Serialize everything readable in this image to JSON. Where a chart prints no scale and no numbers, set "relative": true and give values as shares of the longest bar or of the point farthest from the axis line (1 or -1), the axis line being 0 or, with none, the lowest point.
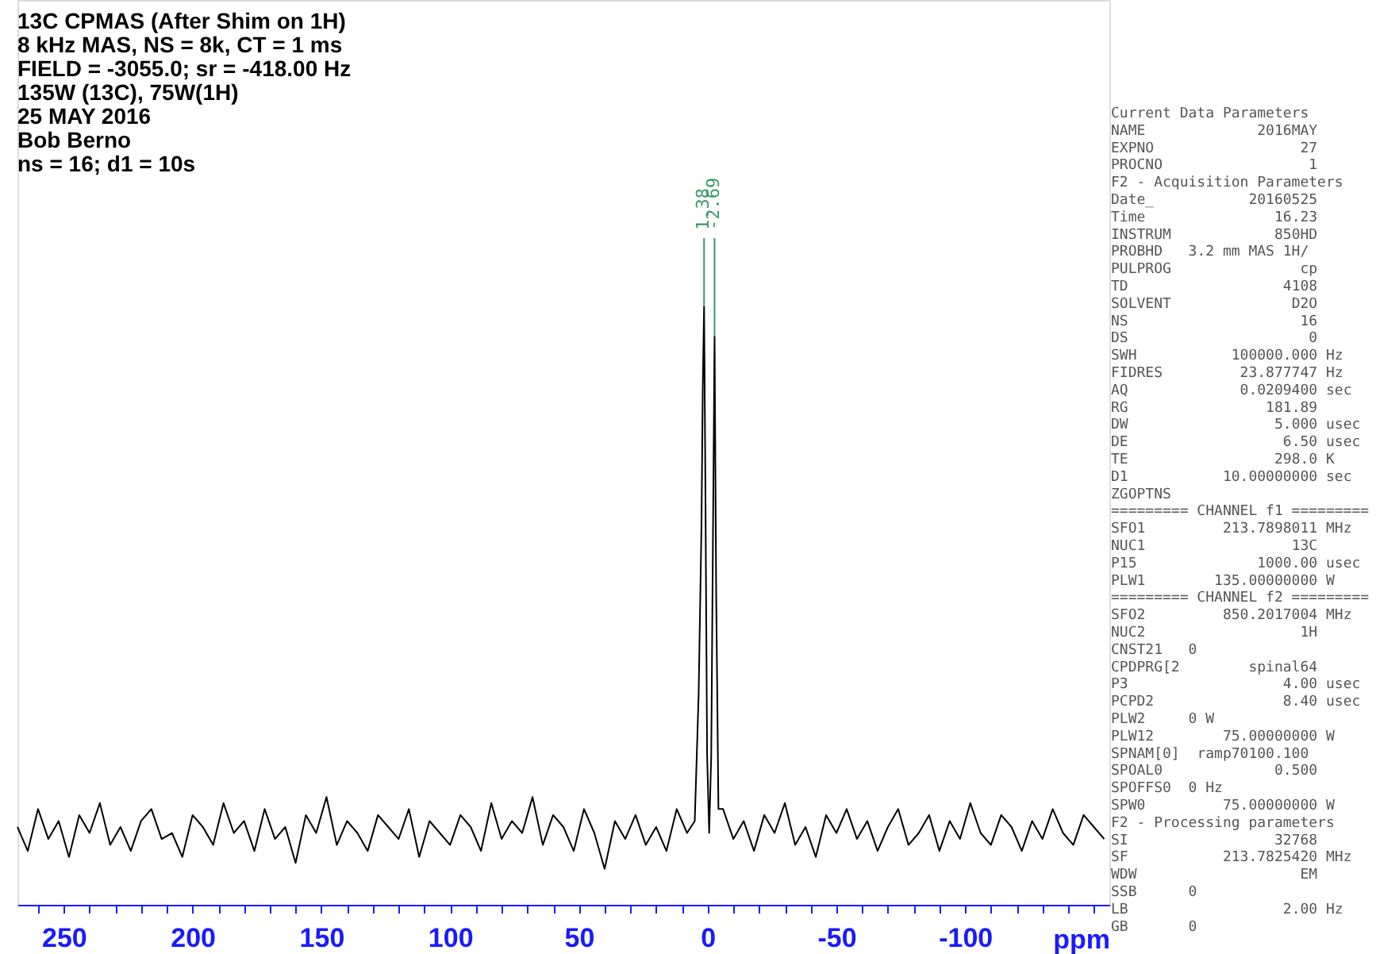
{
  "chart_data": {
    "type": "line",
    "title": "13C CPMAS (After Shim on 1H)",
    "subtitle": "8 kHz MAS, NS  = 8k, CT = 1 ms\nFIELD = -3055.0;  sr = -418.00 Hz\n135W (13C), 75W(1H)\n25 MAY 2016\nBob Berno\nns = 16; d1 = 10s",
    "xlabel": "ppm",
    "relative": true,
    "grid": false,
    "marker": "none",
    "line_style": "solid",
    "xlim": [
      268,
      -156
    ],
    "xticks": [
      {
        "value": 260,
        "label": null
      },
      250,
      {
        "value": 240,
        "label": null
      },
      {
        "value": 230,
        "label": null
      },
      {
        "value": 220,
        "label": null
      },
      {
        "value": 210,
        "label": null
      },
      200,
      {
        "value": 190,
        "label": null
      },
      {
        "value": 180,
        "label": null
      },
      {
        "value": 170,
        "label": null
      },
      {
        "value": 160,
        "label": null
      },
      150,
      {
        "value": 140,
        "label": null
      },
      {
        "value": 130,
        "label": null
      },
      {
        "value": 120,
        "label": null
      },
      {
        "value": 110,
        "label": null
      },
      100,
      {
        "value": 90,
        "label": null
      },
      {
        "value": 80,
        "label": null
      },
      {
        "value": 70,
        "label": null
      },
      {
        "value": 60,
        "label": null
      },
      50,
      {
        "value": 40,
        "label": null
      },
      {
        "value": 30,
        "label": null
      },
      {
        "value": 20,
        "label": null
      },
      {
        "value": 10,
        "label": null
      },
      0,
      {
        "value": -10,
        "label": null
      },
      {
        "value": -20,
        "label": null
      },
      {
        "value": -30,
        "label": null
      },
      {
        "value": -40,
        "label": null
      },
      -50,
      {
        "value": -60,
        "label": null
      },
      {
        "value": -70,
        "label": null
      },
      {
        "value": -80,
        "label": null
      },
      {
        "value": -90,
        "label": null
      },
      -100,
      {
        "value": -110,
        "label": null
      },
      {
        "value": -120,
        "label": null
      },
      {
        "value": -130,
        "label": null
      },
      {
        "value": -140,
        "label": null
      },
      {
        "value": -150,
        "label": null
      }
    ],
    "series": [
      {
        "color": "#000000",
        "x": [
          268,
          264,
          260,
          256,
          252,
          248,
          244,
          240,
          236,
          232,
          228,
          224,
          220,
          216,
          212,
          208,
          204,
          200,
          196,
          192,
          188,
          184,
          180,
          176,
          172,
          168,
          164,
          160,
          156,
          152,
          148,
          144,
          140,
          136,
          132,
          128,
          124,
          120,
          116,
          112,
          108,
          104,
          100,
          96,
          92,
          88,
          84,
          80,
          76,
          72,
          68,
          64,
          60,
          56,
          52,
          48,
          44,
          40,
          36,
          32,
          28,
          24,
          20,
          16,
          12,
          8,
          5,
          3.5,
          2.4,
          1.9,
          1.38,
          0.9,
          0.2,
          -0.6,
          -1.4,
          -2.1,
          -2.69,
          -3.3,
          -4.2,
          -6,
          -10,
          -14,
          -18,
          -22,
          -26,
          -30,
          -34,
          -38,
          -42,
          -46,
          -50,
          -54,
          -58,
          -62,
          -66,
          -70,
          -74,
          -78,
          -82,
          -86,
          -90,
          -94,
          -98,
          -102,
          -106,
          -110,
          -114,
          -118,
          -122,
          -126,
          -130,
          -134,
          -138,
          -142,
          -146,
          -150,
          -154
        ],
        "values": [
          0.13,
          0.09,
          0.16,
          0.11,
          0.14,
          0.08,
          0.15,
          0.12,
          0.17,
          0.1,
          0.13,
          0.09,
          0.14,
          0.16,
          0.11,
          0.12,
          0.08,
          0.15,
          0.13,
          0.1,
          0.17,
          0.12,
          0.14,
          0.09,
          0.16,
          0.11,
          0.13,
          0.07,
          0.15,
          0.12,
          0.18,
          0.1,
          0.14,
          0.12,
          0.09,
          0.15,
          0.13,
          0.11,
          0.16,
          0.08,
          0.14,
          0.12,
          0.1,
          0.15,
          0.13,
          0.09,
          0.17,
          0.11,
          0.14,
          0.12,
          0.18,
          0.1,
          0.15,
          0.13,
          0.09,
          0.16,
          0.12,
          0.06,
          0.14,
          0.11,
          0.15,
          0.1,
          0.13,
          0.09,
          0.16,
          0.12,
          0.14,
          0.35,
          0.63,
          0.86,
          1.0,
          0.72,
          0.25,
          0.12,
          0.25,
          0.63,
          0.95,
          0.53,
          0.16,
          0.16,
          0.11,
          0.14,
          0.09,
          0.15,
          0.12,
          0.17,
          0.1,
          0.13,
          0.08,
          0.15,
          0.12,
          0.16,
          0.11,
          0.14,
          0.09,
          0.13,
          0.16,
          0.1,
          0.12,
          0.15,
          0.09,
          0.14,
          0.11,
          0.17,
          0.12,
          0.1,
          0.15,
          0.13,
          0.09,
          0.14,
          0.11,
          0.16,
          0.12,
          0.1,
          0.15,
          0.13,
          0.11
        ]
      }
    ],
    "annotations": [
      {
        "text": "1.38",
        "x": 1.38,
        "y": 1.0
      },
      {
        "text": "-2.69",
        "x": -2.69,
        "y": 0.95
      },
      "Current Data Parameters",
      "NAME             2016MAY",
      "EXPNO                 27",
      "PROCNO                 1",
      "F2 - Acquisition Parameters",
      "Date_           20160525",
      "Time               16.23",
      "INSTRUM            850HD",
      "PROBHD   3.2 mm MAS 1H/",
      "PULPROG               cp",
      "TD                  4108",
      "SOLVENT              D2O",
      "NS                    16",
      "DS                     0",
      "SWH           100000.000 Hz",
      "FIDRES         23.877747 Hz",
      "AQ             0.0209400 sec",
      "RG                181.89",
      "DW                 5.000 usec",
      "DE                  6.50 usec",
      "TE                 298.0 K",
      "D1           10.00000000 sec",
      "ZGOPTNS",
      "========= CHANNEL f1 =========",
      "SFO1         213.7898011 MHz",
      "NUC1                 13C",
      "P15              1000.00 usec",
      "PLW1        135.00000000 W",
      "========= CHANNEL f2 =========",
      "SFO2         850.2017004 MHz",
      "NUC2                  1H",
      "CNST21   0",
      "CPDPRG[2        spinal64",
      "P3                  4.00 usec",
      "PCPD2               8.40 usec",
      "PLW2     0 W",
      "PLW12        75.00000000 W",
      "SPNAM[0]  ramp70100.100",
      "SPOAL0             0.500",
      "SPOFFS0  0 Hz",
      "SPW0         75.00000000 W",
      "F2 - Processing parameters",
      "SI                 32768",
      "SF           213.7825420 MHz",
      "WDW                   EM",
      "SSB      0",
      "LB                  2.00 Hz",
      "GB       0"
    ]
  }
}
